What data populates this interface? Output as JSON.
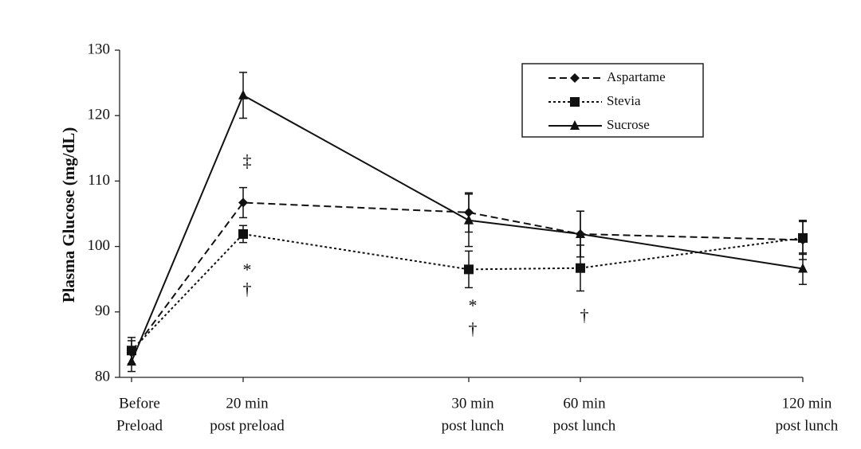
{
  "chart_data": {
    "type": "line",
    "y_label": "Plasma Glucose (mg/dL)",
    "categories": [
      [
        "Before",
        "Preload"
      ],
      [
        "20 min",
        "post preload"
      ],
      [
        "30 min",
        "post lunch"
      ],
      [
        "60 min",
        "post lunch"
      ],
      [
        "120 min",
        "post lunch"
      ]
    ],
    "ylim": [
      80,
      130
    ],
    "yticks": [
      80,
      90,
      100,
      110,
      120,
      130
    ],
    "legend": "top-right",
    "series": [
      {
        "name": "Aspartame",
        "color": "#111111",
        "line_style": "dashed",
        "marker": "diamond",
        "values": [
          83.8,
          106.7,
          105.2,
          101.9,
          101.0
        ],
        "errors": [
          1.8,
          2.3,
          3.0,
          3.5,
          3.0
        ]
      },
      {
        "name": "Stevia",
        "color": "#111111",
        "line_style": "dotted",
        "marker": "square",
        "values": [
          84.1,
          101.9,
          96.5,
          96.7,
          101.3
        ],
        "errors": [
          2.0,
          1.3,
          2.8,
          3.5,
          2.5
        ]
      },
      {
        "name": "Sucrose",
        "color": "#111111",
        "line_style": "solid",
        "marker": "triangle",
        "values": [
          82.4,
          123.1,
          104.0,
          101.9,
          96.6
        ],
        "errors": [
          1.5,
          3.5,
          4.0,
          3.5,
          2.4
        ]
      }
    ],
    "annotations": [
      {
        "text": "‡",
        "category": 1,
        "y": 112.8
      },
      {
        "text": "*",
        "category": 1,
        "y": 96.2
      },
      {
        "text": "†",
        "category": 1,
        "y": 93.2
      },
      {
        "text": "*",
        "category": 2,
        "y": 90.7
      },
      {
        "text": "†",
        "category": 2,
        "y": 87.1
      },
      {
        "text": "†",
        "category": 3,
        "y": 89.2
      }
    ]
  }
}
